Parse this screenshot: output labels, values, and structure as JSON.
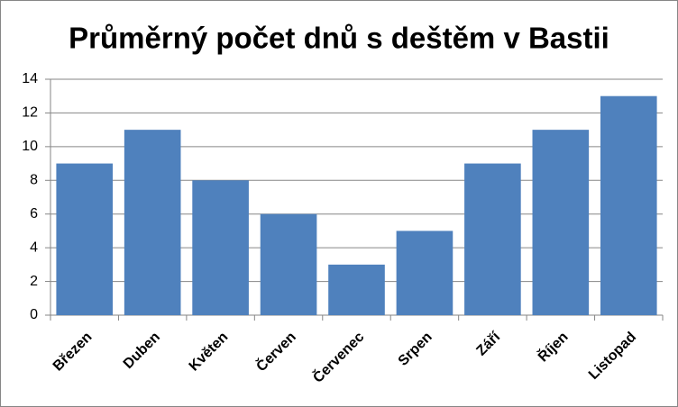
{
  "chart_data": {
    "type": "bar",
    "title": "Průměrný počet dnů s deštěm v Bastii",
    "categories": [
      "Březen",
      "Duben",
      "Květen",
      "Červen",
      "Červenec",
      "Srpen",
      "Září",
      "Říjen",
      "Listopad"
    ],
    "values": [
      9,
      11,
      8,
      6,
      3,
      5,
      9,
      11,
      13
    ],
    "color": "#4f81bd",
    "ylim": [
      0,
      14
    ],
    "yticks": [
      0,
      2,
      4,
      6,
      8,
      10,
      12,
      14
    ],
    "grid": true
  }
}
